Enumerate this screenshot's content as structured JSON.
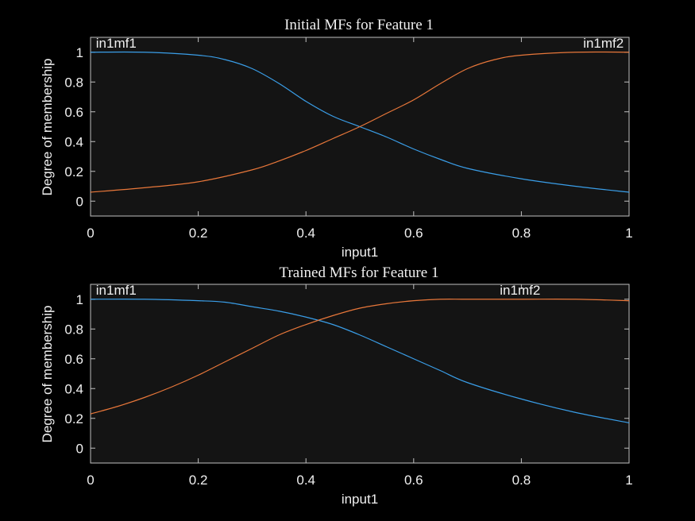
{
  "chart_data": [
    {
      "type": "line",
      "title": "Initial MFs for Feature 1",
      "xlabel": "input1",
      "ylabel": "Degree of membership",
      "xlim": [
        0,
        1
      ],
      "ylim": [
        -0.1,
        1.1
      ],
      "xticks": [
        "0",
        "0.2",
        "0.4",
        "0.6",
        "0.8",
        "1"
      ],
      "yticks": [
        "0",
        "0.2",
        "0.4",
        "0.6",
        "0.8",
        "1"
      ],
      "grid": false,
      "series": [
        {
          "name": "in1mf1",
          "color": "#3a9ee8",
          "x": [
            0,
            0.1,
            0.2,
            0.25,
            0.3,
            0.35,
            0.4,
            0.45,
            0.5,
            0.55,
            0.6,
            0.65,
            0.7,
            0.8,
            0.9,
            1
          ],
          "y": [
            1,
            1,
            0.98,
            0.95,
            0.89,
            0.79,
            0.67,
            0.57,
            0.5,
            0.43,
            0.35,
            0.28,
            0.22,
            0.15,
            0.1,
            0.06
          ]
        },
        {
          "name": "in1mf2",
          "color": "#e8773a",
          "x": [
            0,
            0.1,
            0.2,
            0.3,
            0.35,
            0.4,
            0.45,
            0.5,
            0.55,
            0.6,
            0.65,
            0.7,
            0.75,
            0.8,
            0.9,
            1
          ],
          "y": [
            0.06,
            0.09,
            0.13,
            0.21,
            0.27,
            0.34,
            0.42,
            0.5,
            0.59,
            0.68,
            0.79,
            0.89,
            0.95,
            0.98,
            1,
            1
          ]
        }
      ],
      "annotations": [
        {
          "text": "in1mf1",
          "x": 0.01,
          "y": 1.03,
          "anchor": "start"
        },
        {
          "text": "in1mf2",
          "x": 0.99,
          "y": 1.03,
          "anchor": "end"
        }
      ]
    },
    {
      "type": "line",
      "title": "Trained MFs for Feature 1",
      "xlabel": "input1",
      "ylabel": "Degree of membership",
      "xlim": [
        0,
        1
      ],
      "ylim": [
        -0.1,
        1.1
      ],
      "xticks": [
        "0",
        "0.2",
        "0.4",
        "0.6",
        "0.8",
        "1"
      ],
      "yticks": [
        "0",
        "0.2",
        "0.4",
        "0.6",
        "0.8",
        "1"
      ],
      "grid": false,
      "series": [
        {
          "name": "in1mf1",
          "color": "#3a9ee8",
          "x": [
            0,
            0.1,
            0.2,
            0.25,
            0.3,
            0.35,
            0.4,
            0.45,
            0.5,
            0.55,
            0.6,
            0.65,
            0.7,
            0.8,
            0.9,
            1
          ],
          "y": [
            1,
            1,
            0.99,
            0.98,
            0.95,
            0.92,
            0.88,
            0.83,
            0.76,
            0.68,
            0.6,
            0.52,
            0.44,
            0.33,
            0.24,
            0.17
          ]
        },
        {
          "name": "in1mf2",
          "color": "#e8773a",
          "x": [
            0,
            0.05,
            0.1,
            0.15,
            0.2,
            0.25,
            0.3,
            0.35,
            0.4,
            0.45,
            0.5,
            0.55,
            0.6,
            0.65,
            0.7,
            0.8,
            0.9,
            1
          ],
          "y": [
            0.23,
            0.28,
            0.34,
            0.41,
            0.49,
            0.58,
            0.67,
            0.76,
            0.83,
            0.89,
            0.94,
            0.97,
            0.99,
            1,
            1,
            1,
            1,
            0.99
          ]
        }
      ],
      "annotations": [
        {
          "text": "in1mf1",
          "x": 0.01,
          "y": 1.03,
          "anchor": "start"
        },
        {
          "text": "in1mf2",
          "x": 0.76,
          "y": 1.03,
          "anchor": "start"
        }
      ]
    }
  ]
}
